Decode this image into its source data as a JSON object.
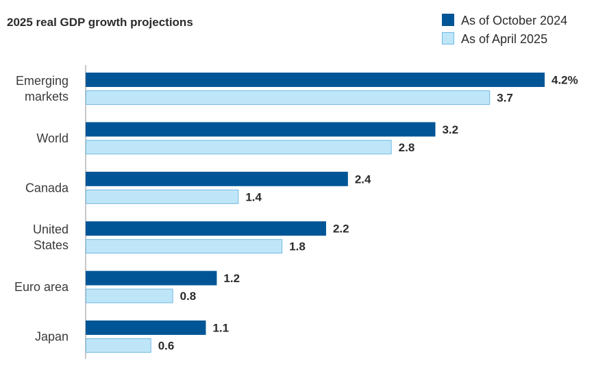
{
  "chart_data": {
    "type": "bar",
    "orientation": "horizontal",
    "title": "2025 real GDP growth projections",
    "categories": [
      [
        "Emerging",
        "markets"
      ],
      [
        "World"
      ],
      [
        "Canada"
      ],
      [
        "United",
        "States"
      ],
      [
        "Euro area"
      ],
      [
        "Japan"
      ]
    ],
    "series": [
      {
        "name": "As of October 2024",
        "color": "#005596",
        "values": [
          4.2,
          3.2,
          2.4,
          2.2,
          1.2,
          1.1
        ],
        "labels": [
          "4.2%",
          "3.2",
          "2.4",
          "2.2",
          "1.2",
          "1.1"
        ]
      },
      {
        "name": "As of April 2025",
        "color": "#bfe6f8",
        "stroke": "#6fb9e3",
        "values": [
          3.7,
          2.8,
          1.4,
          1.8,
          0.8,
          0.6
        ],
        "labels": [
          "3.7",
          "2.8",
          "1.4",
          "1.8",
          "0.8",
          "0.6"
        ]
      }
    ],
    "xlim": [
      0,
      4.2
    ],
    "grid": false,
    "legend": "top-right",
    "axis_color": "#b5b5b5"
  }
}
